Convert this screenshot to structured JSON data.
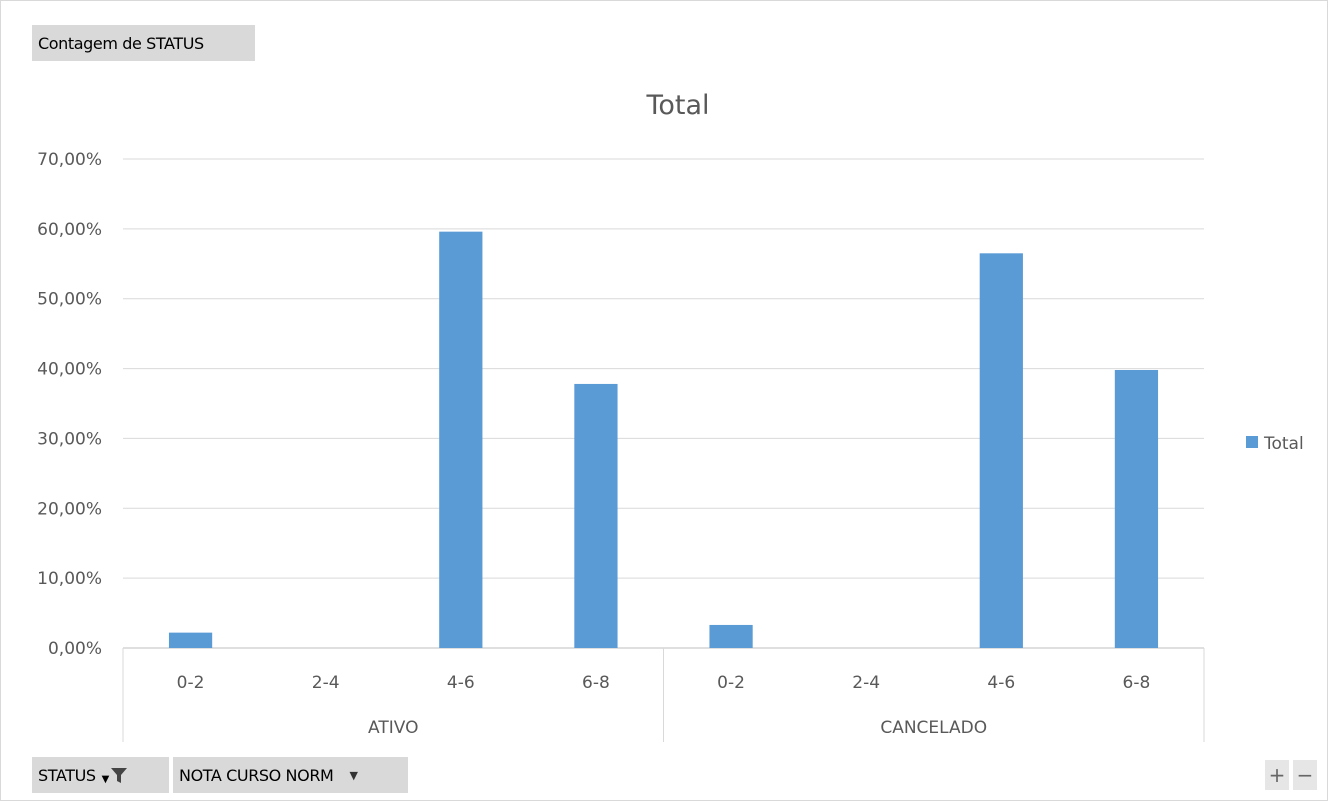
{
  "pivot": {
    "value_field": "Contagem de STATUS",
    "axis_fields": [
      {
        "label": "STATUS",
        "has_filter": true
      },
      {
        "label": "NOTA CURSO NORM",
        "has_filter": false
      }
    ],
    "zoom_in": "+",
    "zoom_out": "−"
  },
  "chart_data": {
    "type": "bar",
    "title": "Total",
    "xlabel": "",
    "ylabel": "",
    "ylim": [
      0,
      70
    ],
    "yticks": [
      "0,00%",
      "10,00%",
      "20,00%",
      "30,00%",
      "40,00%",
      "50,00%",
      "60,00%",
      "70,00%"
    ],
    "groups": [
      {
        "name": "ATIVO",
        "categories": [
          "0-2",
          "2-4",
          "4-6",
          "6-8"
        ],
        "values": [
          2.2,
          0,
          59.6,
          37.8
        ]
      },
      {
        "name": "CANCELADO",
        "categories": [
          "0-2",
          "2-4",
          "4-6",
          "6-8"
        ],
        "values": [
          3.3,
          0,
          56.5,
          39.8
        ]
      }
    ],
    "series": [
      {
        "name": "Total",
        "color": "#5b9bd5"
      }
    ],
    "legend": "right",
    "grid": true
  }
}
